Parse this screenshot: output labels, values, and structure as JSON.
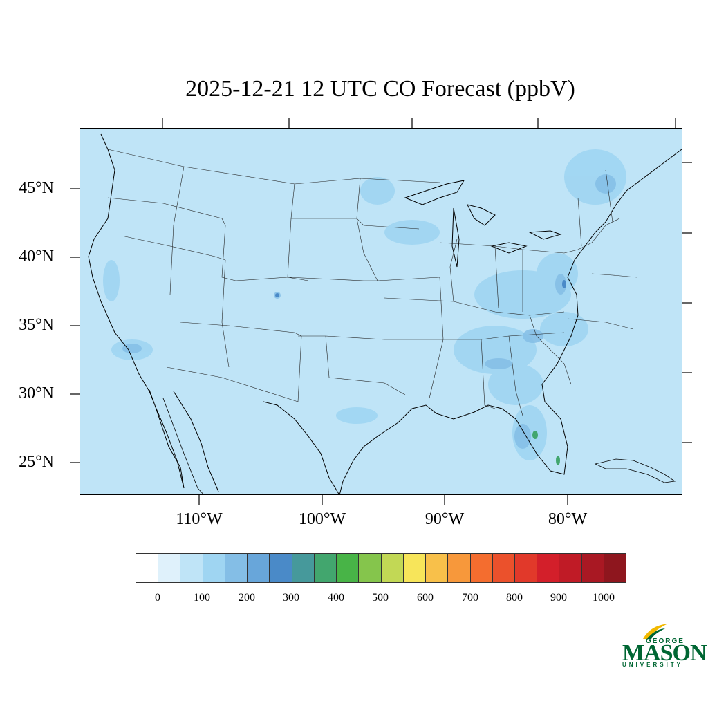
{
  "title": "2025-12-21 12 UTC CO Forecast (ppbV)",
  "map": {
    "latitude_labels": [
      "45°N",
      "40°N",
      "35°N",
      "30°N",
      "25°N"
    ],
    "longitude_labels": [
      "110°W",
      "100°W",
      "90°W",
      "80°W"
    ],
    "background_color": "#bfe4f7"
  },
  "colorbar": {
    "colors": [
      "#ffffff",
      "#dff1fb",
      "#bfe4f7",
      "#9fd5f2",
      "#84bee6",
      "#68a6da",
      "#4a8ac8",
      "#46999b",
      "#42a66e",
      "#48b447",
      "#85c54c",
      "#c2d855",
      "#f7e55a",
      "#f8c04a",
      "#f7983b",
      "#f46d2f",
      "#eb512c",
      "#e1392a",
      "#d31f2a",
      "#c01b26",
      "#a91823",
      "#8e161e"
    ],
    "labels": [
      "0",
      "100",
      "200",
      "300",
      "400",
      "500",
      "600",
      "700",
      "800",
      "900",
      "1000"
    ]
  },
  "logo": {
    "line1": "GEORGE",
    "line2": "MASON",
    "line3": "UNIVERSITY",
    "color": "#006633"
  }
}
